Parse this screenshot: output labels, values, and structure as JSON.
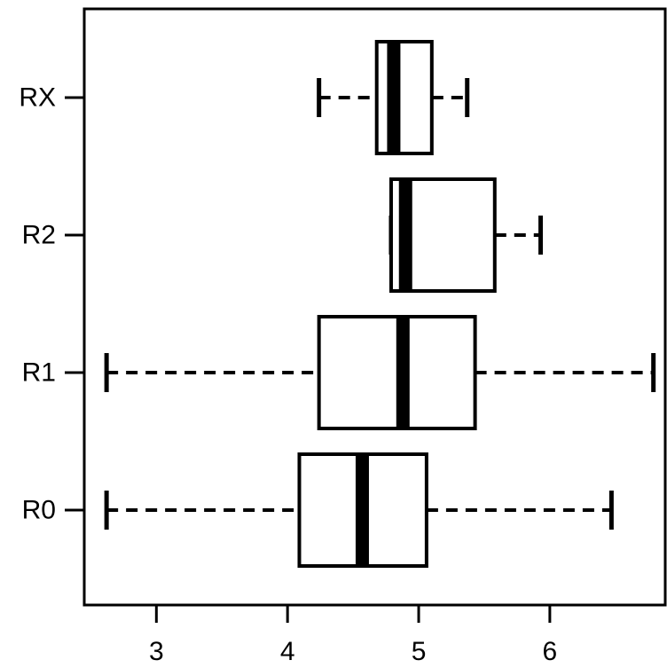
{
  "chart_data": {
    "type": "boxplot",
    "orientation": "horizontal",
    "categories": [
      "R0",
      "R1",
      "R2",
      "RX"
    ],
    "boxes": [
      {
        "category": "R0",
        "whisker_low": 2.62,
        "q1": 4.09,
        "median": 4.57,
        "q3": 5.06,
        "whisker_high": 6.47
      },
      {
        "category": "R1",
        "whisker_low": 2.62,
        "q1": 4.24,
        "median": 4.88,
        "q3": 5.43,
        "whisker_high": 6.79
      },
      {
        "category": "R2",
        "whisker_low": 4.79,
        "q1": 4.79,
        "median": 4.9,
        "q3": 5.58,
        "whisker_high": 5.93
      },
      {
        "category": "RX",
        "whisker_low": 4.24,
        "q1": 4.68,
        "median": 4.81,
        "q3": 5.1,
        "whisker_high": 5.37
      }
    ],
    "x_ticks": [
      "3",
      "4",
      "5",
      "6"
    ],
    "xlim": [
      2.45,
      6.88
    ],
    "title": "",
    "xlabel": "",
    "ylabel": "",
    "grid": false,
    "colors": {
      "stroke": "#000000",
      "fill": "#ffffff",
      "background": "#ffffff"
    }
  }
}
